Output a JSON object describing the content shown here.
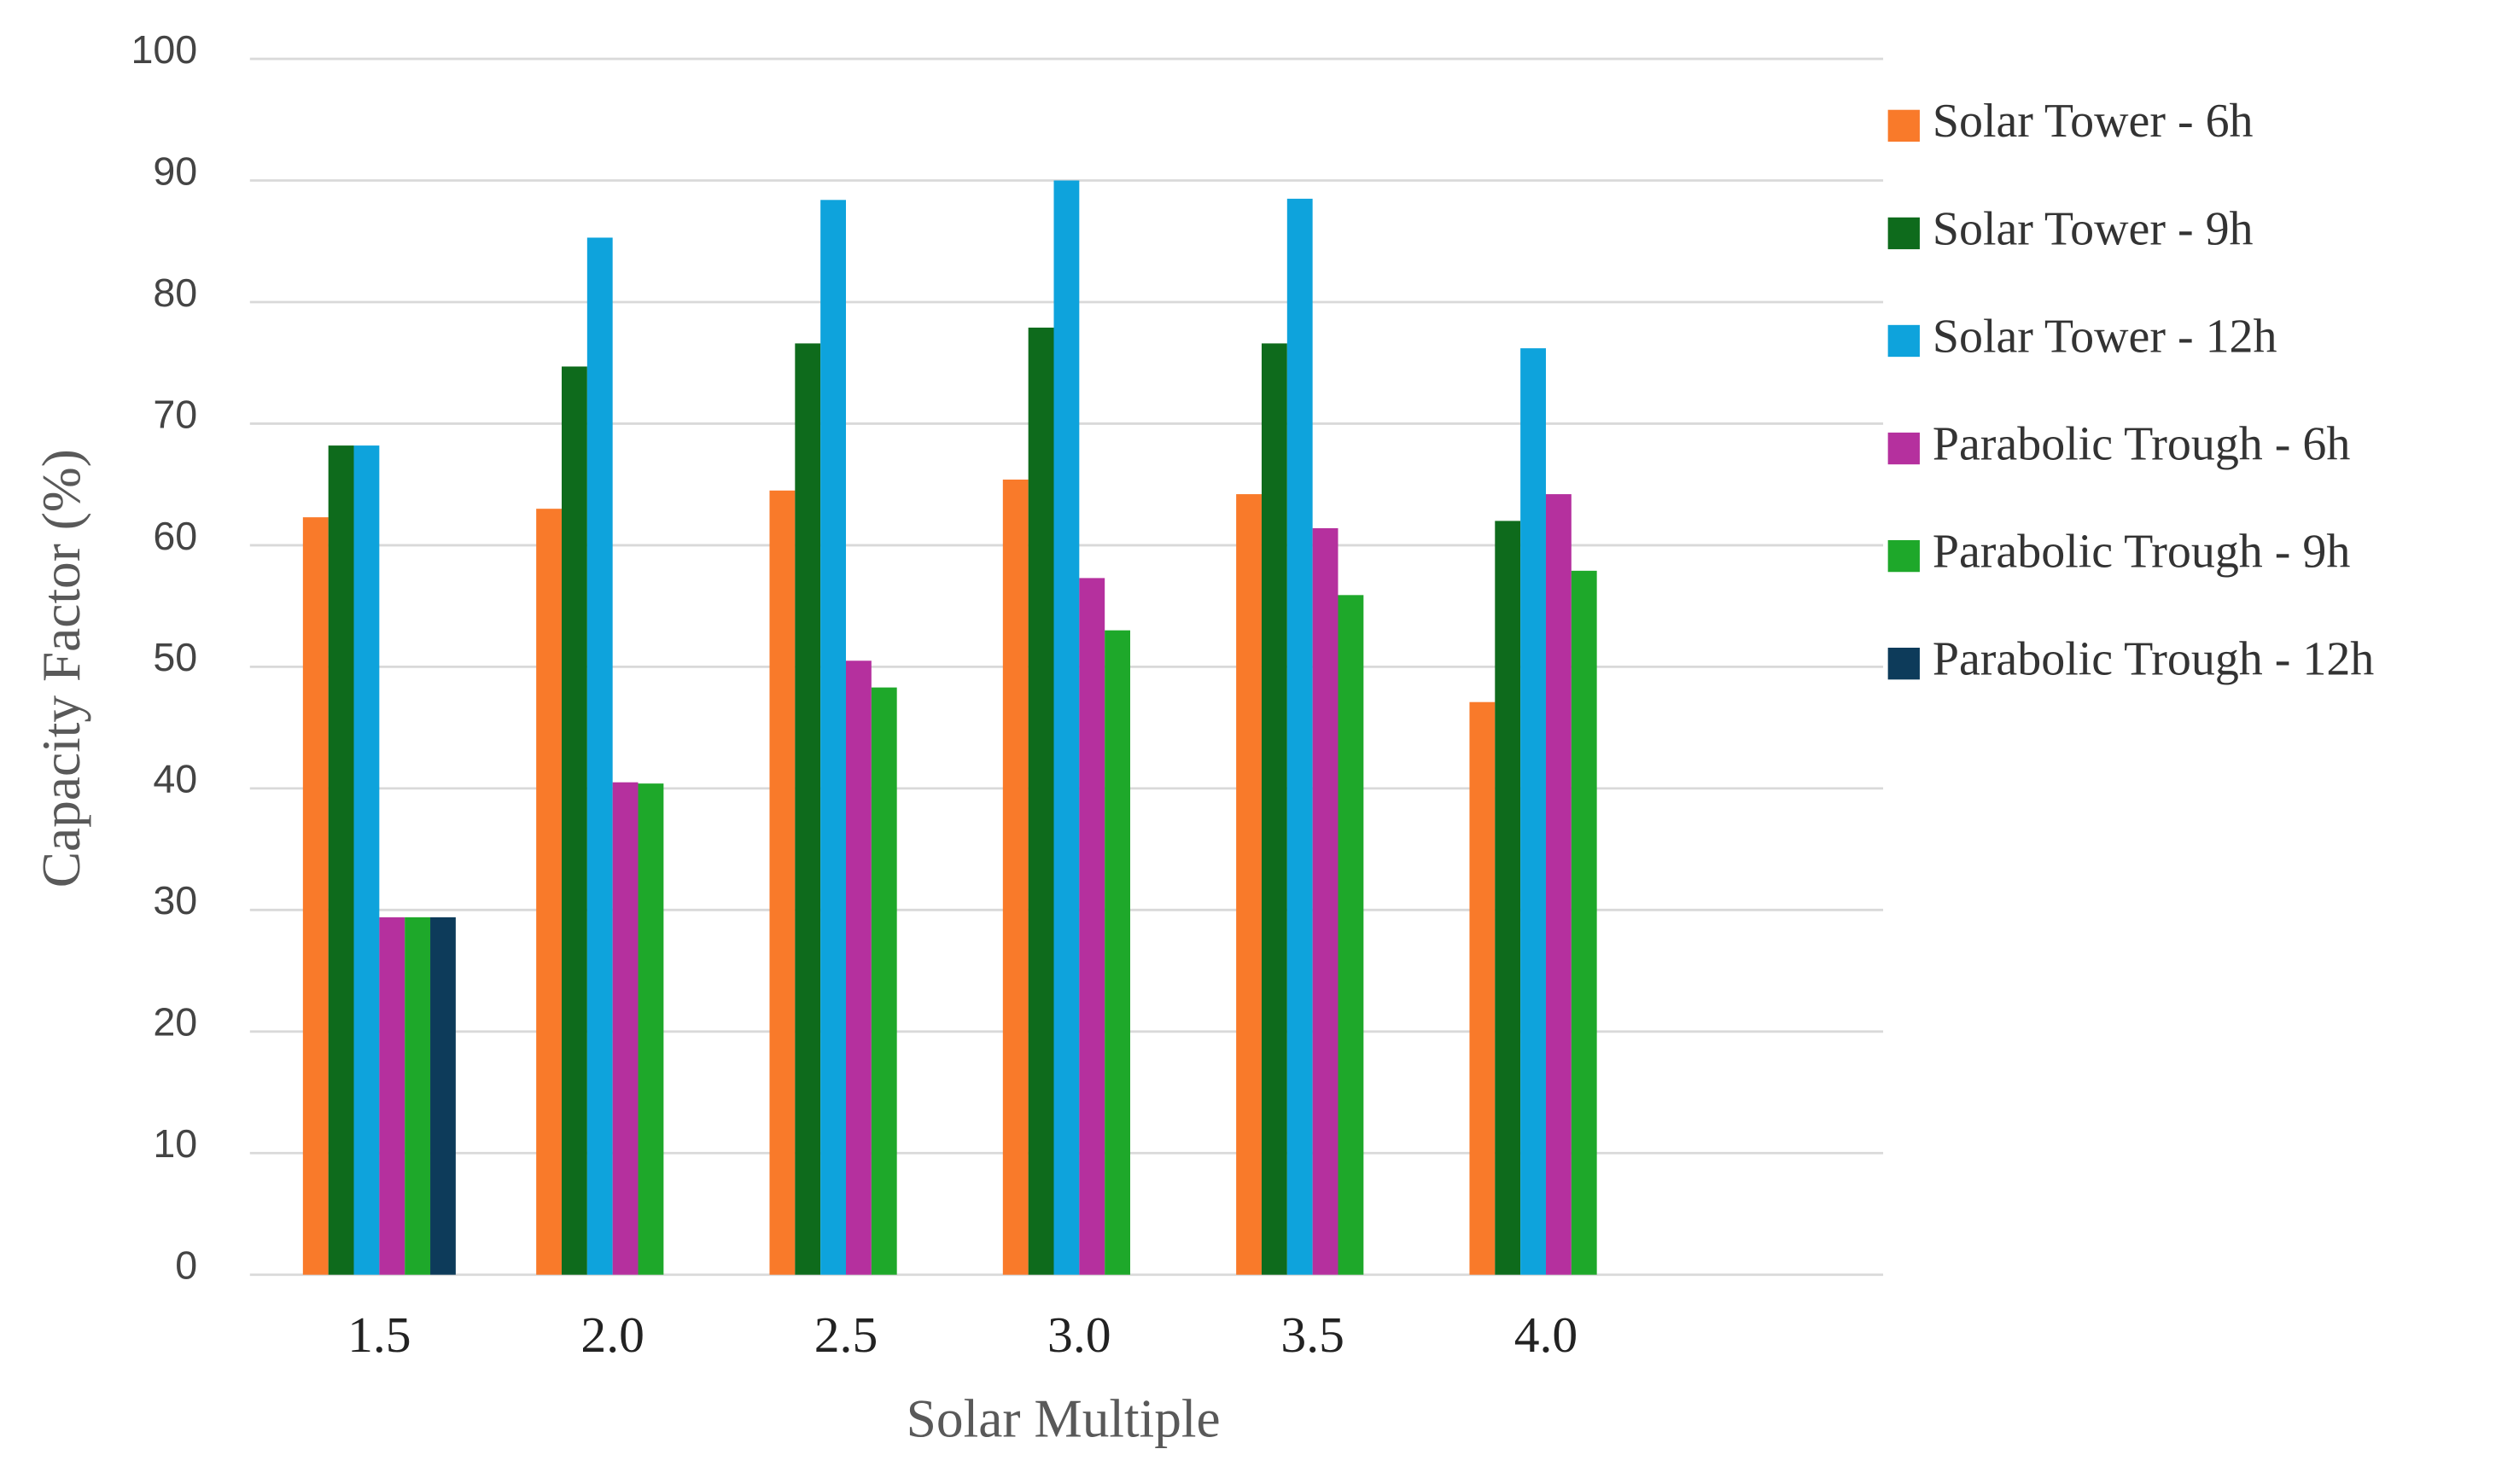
{
  "chart_data": {
    "type": "bar",
    "x_label": "Solar Multiple",
    "y_label": "Capacity Factor (%)",
    "categories": [
      "1.5",
      "2.0",
      "2.5",
      "3.0",
      "3.5",
      "4.0"
    ],
    "series": [
      {
        "name": "Solar Tower - 6h",
        "color": "#f97a2a",
        "values": [
          62.3,
          63,
          64.5,
          65.4,
          64.2,
          47.1
        ]
      },
      {
        "name": "Solar Tower - 9h",
        "color": "#0e6b1c",
        "values": [
          68.2,
          74.7,
          76.6,
          77.9,
          76.6,
          62
        ]
      },
      {
        "name": "Solar Tower - 12h",
        "color": "#0ea3dc",
        "values": [
          68.2,
          85.3,
          88.4,
          90,
          88.5,
          76.2
        ]
      },
      {
        "name": "Parabolic Trough - 6h",
        "color": "#b5309e",
        "values": [
          29.4,
          40.5,
          50.5,
          57.3,
          61.4,
          64.2
        ]
      },
      {
        "name": "Parabolic Trough - 9h",
        "color": "#1ea82a",
        "values": [
          29.4,
          40.4,
          48.3,
          53,
          55.9,
          57.9
        ]
      },
      {
        "name": "Parabolic Trough - 12h",
        "color": "#0d3b5a",
        "values": [
          29.4,
          null,
          null,
          null,
          null,
          null
        ]
      }
    ],
    "ylim": [
      0,
      100
    ],
    "yticks": [
      0,
      10,
      20,
      30,
      40,
      50,
      60,
      70,
      80,
      90,
      100
    ],
    "grid": true,
    "legend": "right"
  }
}
